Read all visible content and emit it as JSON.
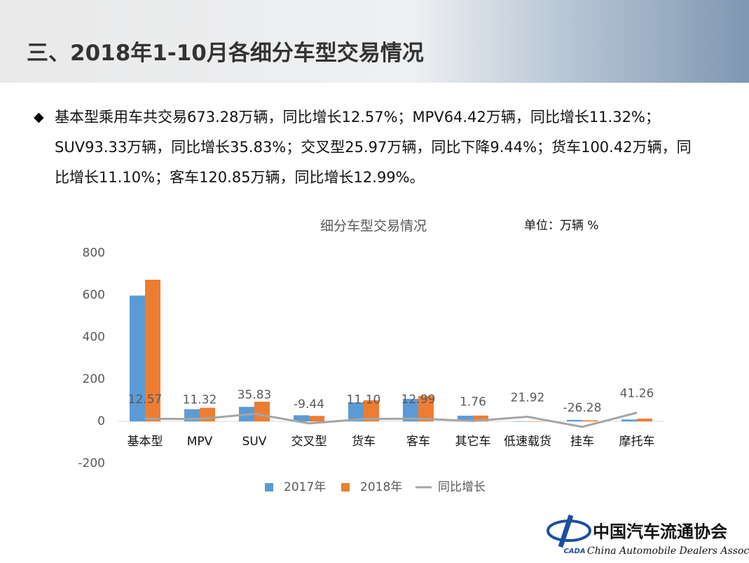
{
  "header": {
    "title": "三、2018年1-10月各细分车型交易情况"
  },
  "bullet": "基本型乘用车共交易673.28万辆，同比增长12.57%；MPV64.42万辆，同比增长11.32%；SUV93.33万辆，同比增长35.83%；交叉型25.97万辆，同比下降9.44%；货车100.42万辆，同比增长11.10%；客车120.85万辆，同比增长12.99%。",
  "chart_data": {
    "type": "bar",
    "title": "细分车型交易情况",
    "subtitle": "单位：万辆  %",
    "categories": [
      "基本型",
      "MPV",
      "SUV",
      "交叉型",
      "货车",
      "客车",
      "其它车",
      "低速载货",
      "挂车",
      "摩托车"
    ],
    "series": [
      {
        "name": "2017年",
        "color": "#5b9bd5",
        "values": [
          598,
          58,
          69,
          29,
          90,
          107,
          27,
          0.5,
          7,
          9
        ]
      },
      {
        "name": "2018年",
        "color": "#ed7d31",
        "values": [
          673.28,
          64.42,
          93.33,
          25.97,
          100.42,
          120.85,
          27.5,
          0.6,
          5,
          13
        ]
      },
      {
        "name": "同比增长",
        "color": "#a5a5a5",
        "type": "line",
        "values": [
          12.57,
          11.32,
          35.83,
          -9.44,
          11.1,
          12.99,
          1.76,
          21.92,
          -26.28,
          41.26
        ],
        "value_labels": [
          "12.57",
          "11.32",
          "35.83",
          "-9.44",
          "11.10",
          "12.99",
          "1.76",
          "21.92",
          "-26.28",
          "41.26"
        ]
      }
    ],
    "ylim": [
      -200,
      800
    ],
    "yticks": [
      -200,
      0,
      200,
      400,
      600,
      800
    ],
    "grid": false,
    "legend": "bottom"
  },
  "logo": {
    "name": "中国汽车流通协会",
    "english": "China Automobile Dealers Association",
    "abbr": "CADA"
  }
}
